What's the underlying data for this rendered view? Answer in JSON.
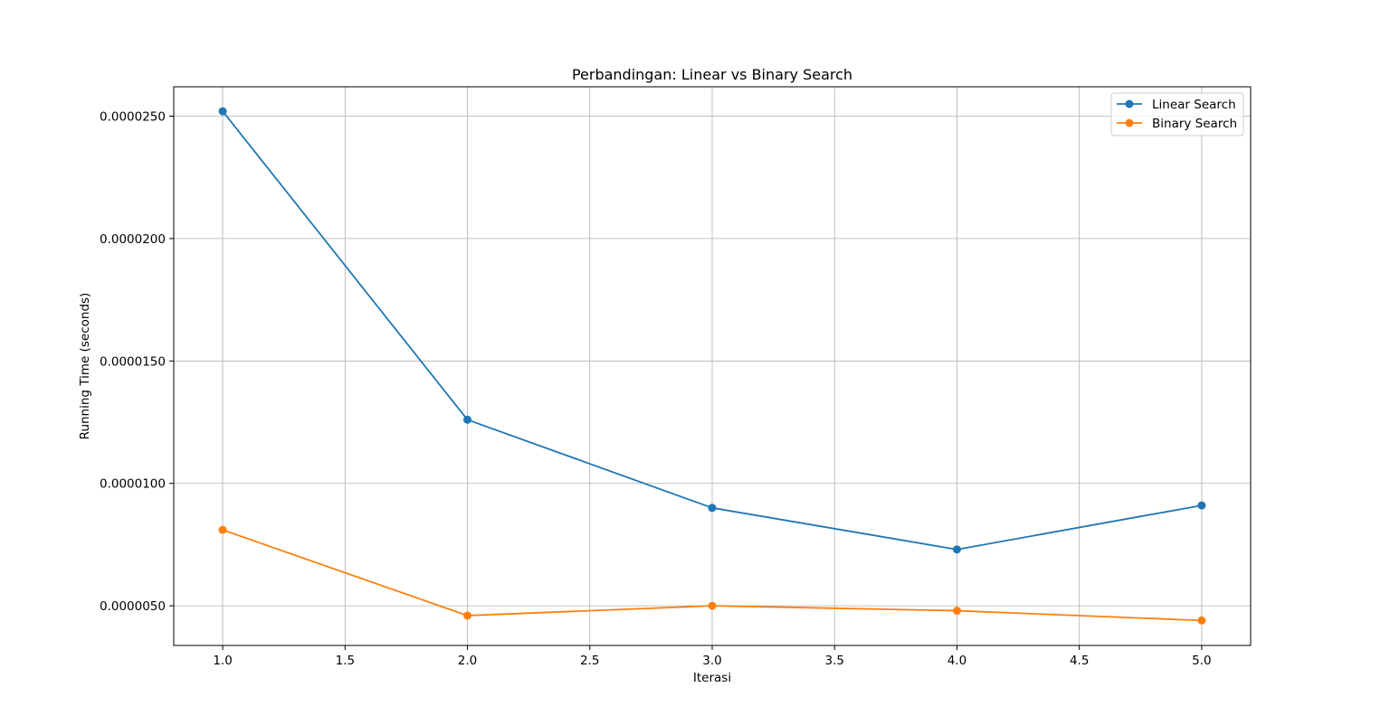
{
  "chart_data": {
    "type": "line",
    "title": "Perbandingan: Linear vs Binary Search",
    "xlabel": "Iterasi",
    "ylabel": "Running Time (seconds)",
    "x": [
      1,
      2,
      3,
      4,
      5
    ],
    "xlim": [
      0.8,
      5.2
    ],
    "ylim": [
      3.38e-06,
      2.62e-05
    ],
    "xticks": [
      1.0,
      1.5,
      2.0,
      2.5,
      3.0,
      3.5,
      4.0,
      4.5,
      5.0
    ],
    "xtick_labels": [
      "1.0",
      "1.5",
      "2.0",
      "2.5",
      "3.0",
      "3.5",
      "4.0",
      "4.5",
      "5.0"
    ],
    "yticks": [
      5e-06,
      1e-05,
      1.5e-05,
      2e-05,
      2.5e-05
    ],
    "ytick_labels": [
      "0.0000050",
      "0.0000100",
      "0.0000150",
      "0.0000200",
      "0.0000250"
    ],
    "grid": true,
    "legend_position": "top-right",
    "series": [
      {
        "name": "Linear Search",
        "color": "#1f77b4",
        "marker": "circle",
        "values": [
          2.52e-05,
          1.26e-05,
          9e-06,
          7.3e-06,
          9.1e-06
        ]
      },
      {
        "name": "Binary Search",
        "color": "#ff7f0e",
        "marker": "circle",
        "values": [
          8.1e-06,
          4.6e-06,
          5e-06,
          4.8e-06,
          4.4e-06
        ]
      }
    ]
  }
}
